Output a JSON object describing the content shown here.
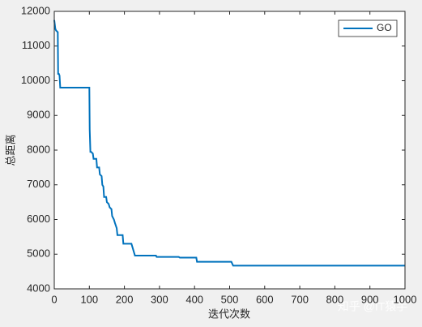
{
  "chart_data": {
    "type": "line",
    "x_label": "迭代次数",
    "y_label": "总距离",
    "x": [
      0,
      3,
      5,
      10,
      11,
      13,
      15,
      17,
      100,
      101,
      103,
      105,
      110,
      112,
      120,
      122,
      128,
      130,
      135,
      137,
      140,
      142,
      148,
      150,
      155,
      158,
      163,
      165,
      170,
      173,
      178,
      180,
      195,
      197,
      220,
      223,
      230,
      290,
      292,
      355,
      358,
      405,
      407,
      505,
      510,
      1000
    ],
    "series": [
      {
        "name": "GO",
        "color": "#0072bd",
        "values": [
          11750,
          11500,
          11450,
          11400,
          10200,
          10200,
          10150,
          9800,
          9800,
          8600,
          7950,
          7950,
          7900,
          7750,
          7750,
          7500,
          7500,
          7300,
          7250,
          7000,
          6950,
          6650,
          6650,
          6500,
          6450,
          6350,
          6300,
          6100,
          6000,
          5900,
          5750,
          5550,
          5550,
          5300,
          5300,
          5200,
          4960,
          4960,
          4920,
          4920,
          4900,
          4900,
          4780,
          4780,
          4670,
          4670
        ]
      }
    ],
    "xlim": [
      0,
      1000
    ],
    "xticks": [
      0,
      100,
      200,
      300,
      400,
      500,
      600,
      700,
      800,
      900,
      1000
    ],
    "ylim": [
      4000,
      12000
    ],
    "yticks": [
      4000,
      5000,
      6000,
      7000,
      8000,
      9000,
      10000,
      11000,
      12000
    ],
    "legend": "upper right",
    "watermark": "知乎 @IT猿手"
  }
}
